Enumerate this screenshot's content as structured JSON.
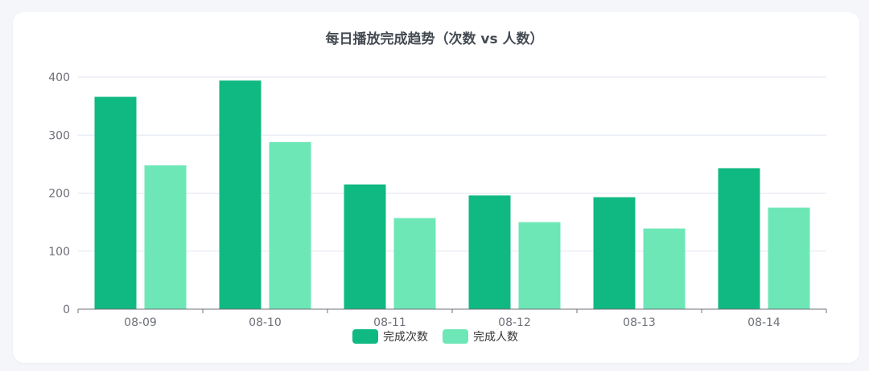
{
  "chart_data": {
    "type": "bar",
    "title": "每日播放完成趋势（次数 vs 人数）",
    "categories": [
      "08-09",
      "08-10",
      "08-11",
      "08-12",
      "08-13",
      "08-14"
    ],
    "series": [
      {
        "name": "完成次数",
        "color": "#10b981",
        "values": [
          366,
          394,
          215,
          196,
          193,
          243
        ]
      },
      {
        "name": "完成人数",
        "color": "#6ee7b7",
        "values": [
          248,
          288,
          157,
          150,
          139,
          175
        ]
      }
    ],
    "ylim": [
      0,
      400
    ],
    "yticks": [
      0,
      100,
      200,
      300,
      400
    ],
    "grid": true,
    "legend_position": "bottom-center"
  }
}
